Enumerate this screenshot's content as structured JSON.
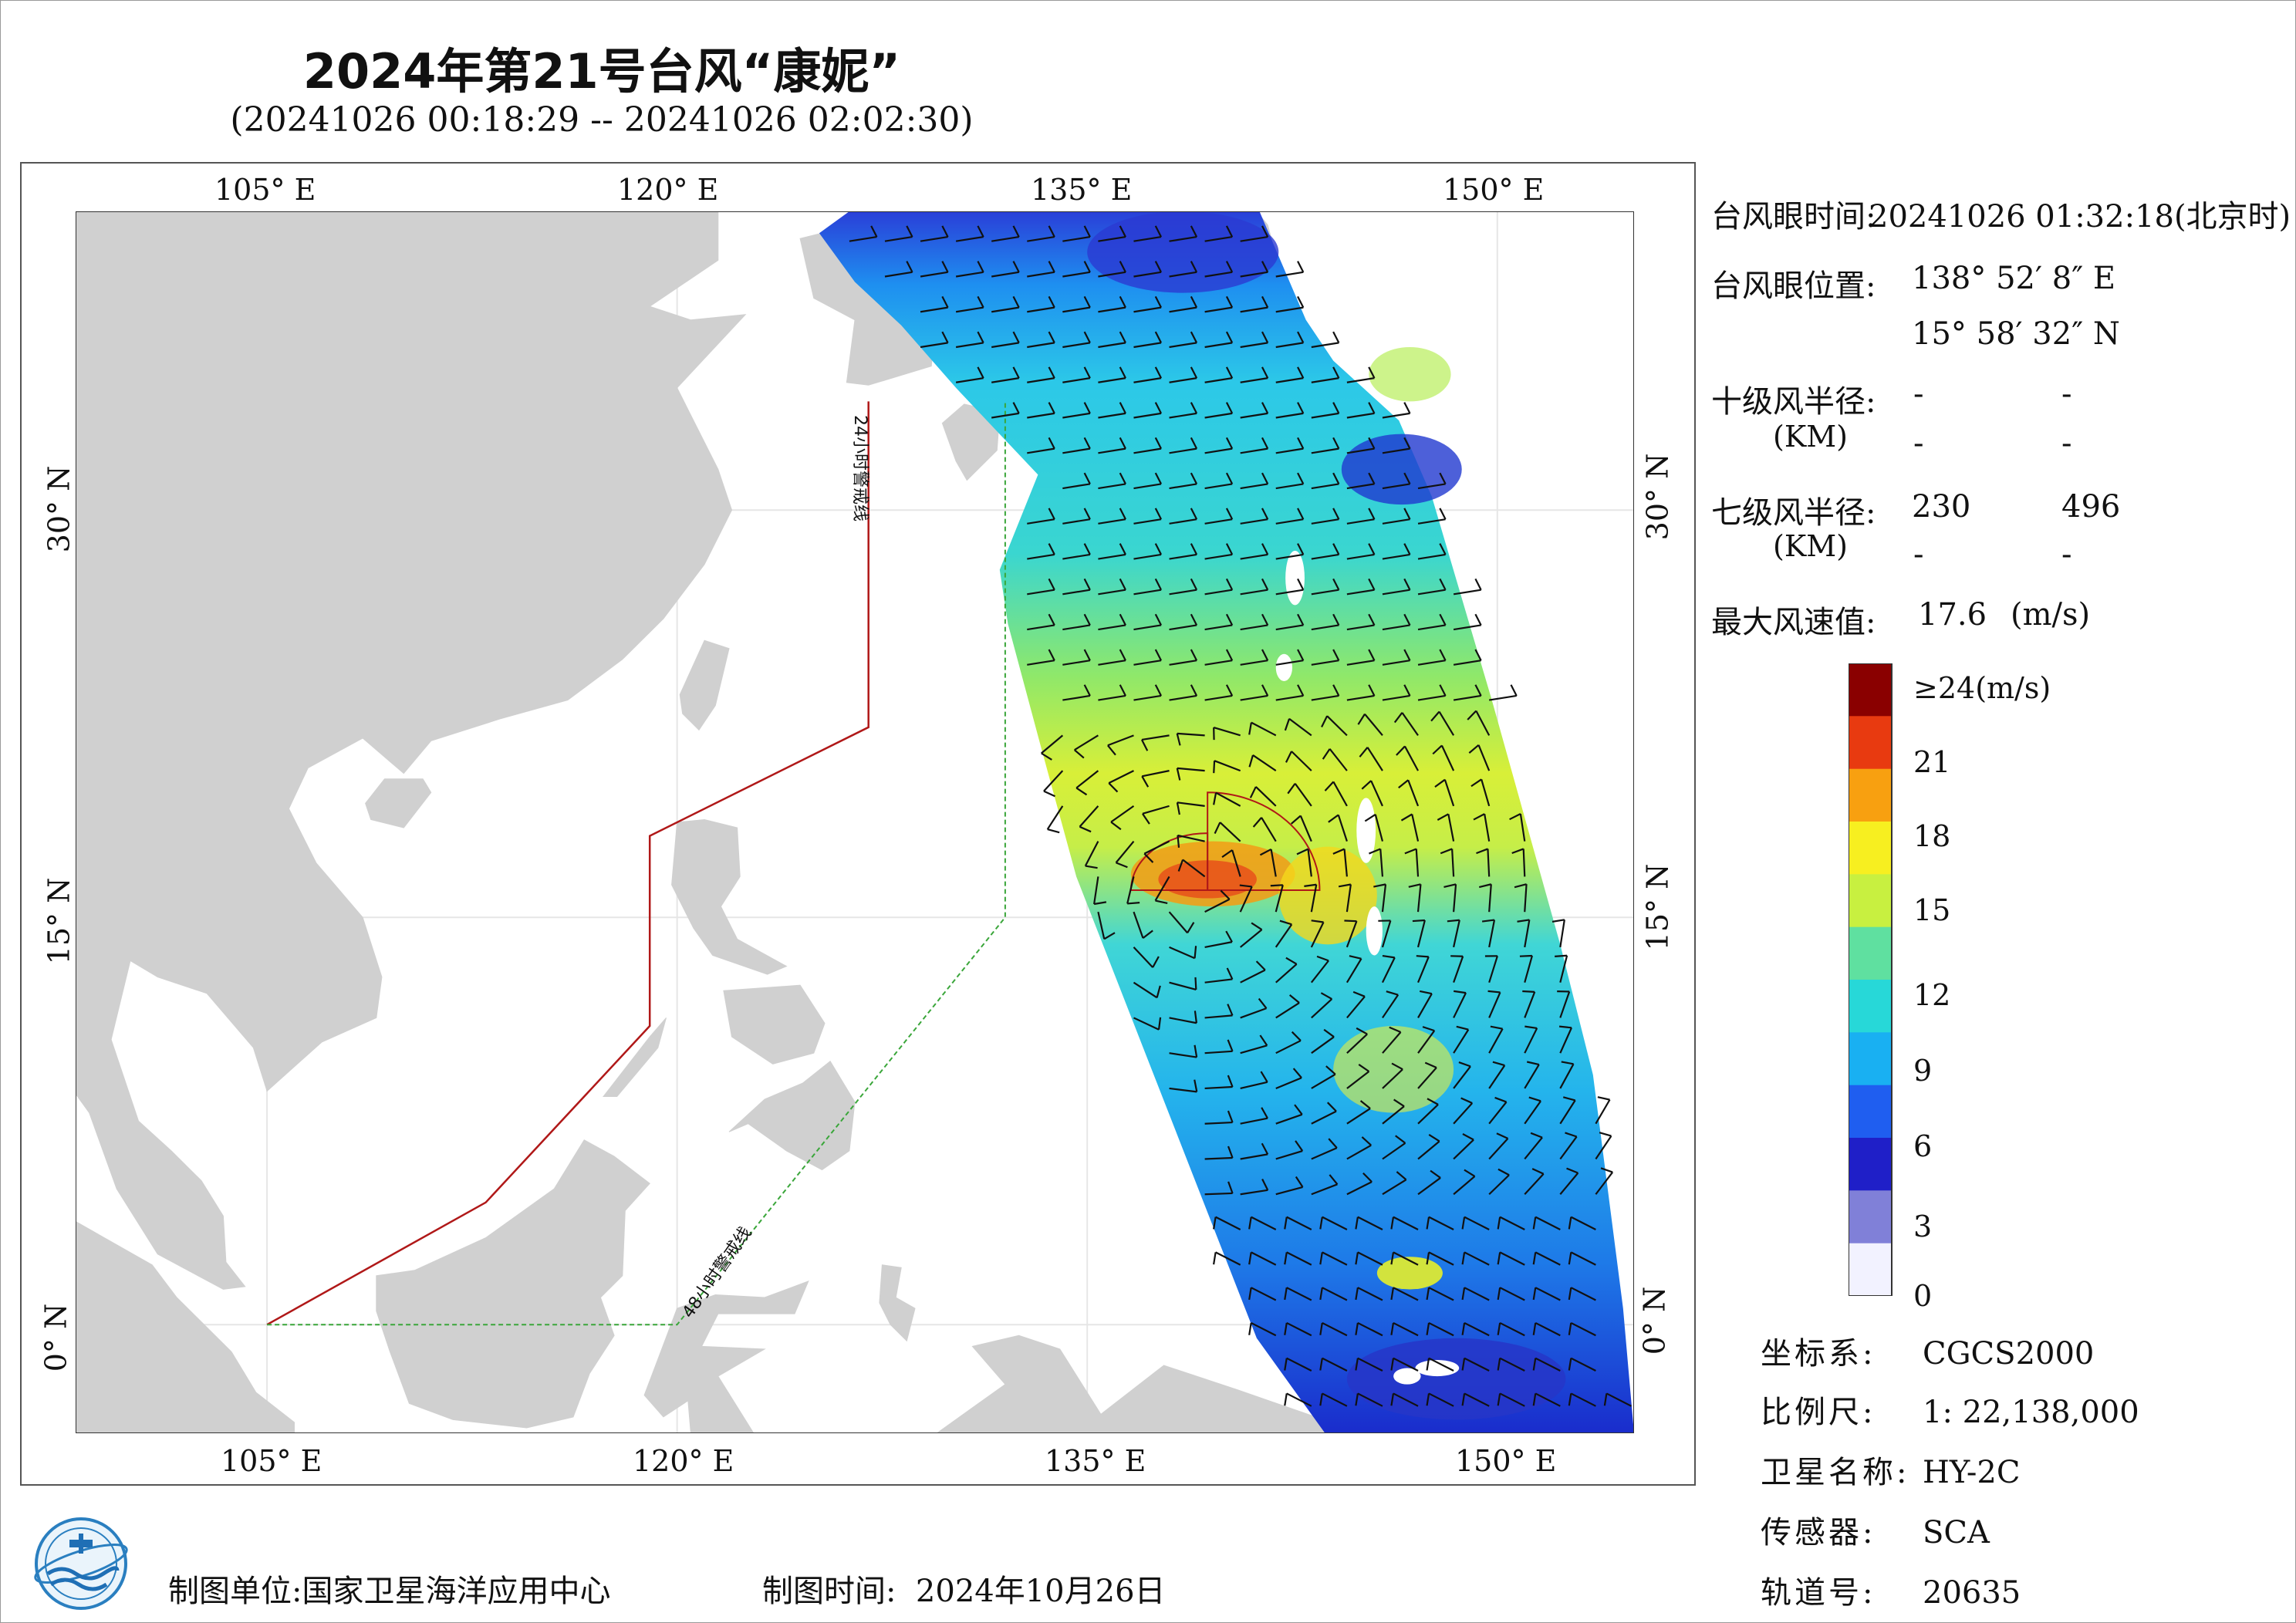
{
  "title": "2024年第21号台风“康妮”",
  "subtitle": "(20241026 00:18:29 -- 20241026 02:02:30)",
  "map": {
    "lon_ticks": [
      "105° E",
      "120° E",
      "135° E",
      "150° E"
    ],
    "lat_ticks": [
      "30° N",
      "15° N",
      "0° N"
    ],
    "lon_range": [
      98,
      155
    ],
    "lat_range": [
      -4,
      41
    ],
    "line_24h_label": "24小时警戒线",
    "line_48h_label": "48小时警戒线",
    "colors": {
      "land": "#d0d0d0",
      "sea": "#ffffff",
      "warning_24h": "#b01818",
      "warning_48h": "#3aa63a",
      "wind_radius": "#b01818",
      "barb": "#111111"
    }
  },
  "info": {
    "eye_time_label": "台风眼时间:",
    "eye_time_value": "20241026 01:32:18(北京时)",
    "eye_pos_label": "台风眼位置:",
    "eye_lon": "138° 52′ 8″ E",
    "eye_lat": "15° 58′ 32″ N",
    "r10_label": "十级风半径:",
    "r10_unit": "(KM)",
    "r10_values": [
      "-",
      "-",
      "-",
      "-"
    ],
    "r7_label": "七级风半径:",
    "r7_unit": "(KM)",
    "r7_values": [
      "230",
      "496",
      "-",
      "-"
    ],
    "max_wind_label": "最大风速值:",
    "max_wind_value": "17.6",
    "max_wind_unit": "(m/s)"
  },
  "colorbar": {
    "labels": [
      "≥24(m/s)",
      "21",
      "18",
      "15",
      "12",
      "9",
      "6",
      "3",
      "0"
    ],
    "values": [
      24,
      21,
      18,
      15,
      12,
      9,
      6,
      3,
      0
    ],
    "stops": [
      "#f2f2ff",
      "#8080d8",
      "#1f1fc8",
      "#1f5ef0",
      "#19b0f2",
      "#27d8d8",
      "#5fe0a0",
      "#c8f040",
      "#f7ef20",
      "#f8a010",
      "#e83a10",
      "#8a0000"
    ]
  },
  "meta": {
    "crs_label": "坐标系:",
    "crs_value": "CGCS2000",
    "scale_label": "比例尺:",
    "scale_value": "1: 22,138,000",
    "satellite_label": "卫星名称:",
    "satellite_value": "HY-2C",
    "sensor_label": "传感器:",
    "sensor_value": "SCA",
    "orbit_label": "轨道号:",
    "orbit_value": "20635"
  },
  "footer": {
    "maker_label": "制图单位:",
    "maker_value": "国家卫星海洋应用中心",
    "date_label": "制图时间:",
    "date_value": "2024年10月26日"
  },
  "logo_icon": "nsoas-logo-icon"
}
